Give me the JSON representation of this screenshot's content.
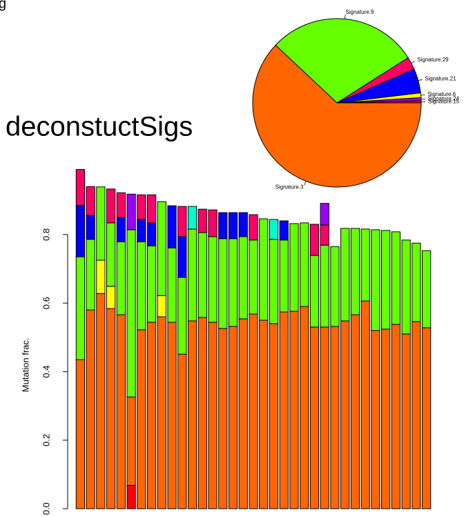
{
  "caption": "g",
  "title": "deconstuctSigs",
  "chart_data": [
    {
      "type": "pie",
      "categories": [
        "Signature.15",
        "Signature.24",
        "Signature.6",
        "Signature.21",
        "Signature.29",
        "Signature.9",
        "Signature.3"
      ],
      "values": [
        0.4,
        0.6,
        0.9,
        4.7,
        2.4,
        29,
        62
      ],
      "colors": [
        "#FF0000",
        "#9900FF",
        "#FFFF00",
        "#0000FF",
        "#FF0066",
        "#66FF00",
        "#FF6600"
      ]
    },
    {
      "type": "bar",
      "stacked": true,
      "ylabel": "Mutation frac.",
      "ylim": [
        0,
        1
      ],
      "yticks": [
        {
          "value": 0,
          "label": "0.0"
        },
        0.2,
        0.4,
        0.6,
        0.8
      ],
      "series": [
        {
          "color": "#FF0000",
          "values": [
            0,
            0,
            0,
            0,
            0,
            0.068,
            0,
            0,
            0,
            0,
            0,
            0,
            0,
            0,
            0,
            0,
            0,
            0,
            0,
            0,
            0,
            0,
            0,
            0,
            0,
            0,
            0,
            0,
            0,
            0,
            0,
            0,
            0,
            0,
            0
          ]
        },
        {
          "color": "#FF6600",
          "values": [
            0.435,
            0.58,
            0.628,
            0.584,
            0.566,
            0.258,
            0.522,
            0.544,
            0.56,
            0.544,
            0.451,
            0.548,
            0.558,
            0.544,
            0.526,
            0.532,
            0.554,
            0.568,
            0.55,
            0.54,
            0.574,
            0.576,
            0.59,
            0.53,
            0.53,
            0.532,
            0.548,
            0.566,
            0.606,
            0.52,
            0.524,
            0.538,
            0.51,
            0.546,
            0.528
          ]
        },
        {
          "color": "#FFFF00",
          "values": [
            0,
            0,
            0.097,
            0.065,
            0,
            0,
            0,
            0,
            0.062,
            0,
            0,
            0,
            0,
            0,
            0,
            0,
            0,
            0,
            0,
            0,
            0,
            0,
            0,
            0,
            0,
            0,
            0,
            0,
            0,
            0,
            0,
            0,
            0,
            0,
            0
          ]
        },
        {
          "color": "#66FF00",
          "values": [
            0.3,
            0.206,
            0.214,
            0.185,
            0.213,
            0.488,
            0.257,
            0.223,
            0.274,
            0.217,
            0.224,
            0.268,
            0.248,
            0.25,
            0.262,
            0.256,
            0.24,
            0.216,
            0.296,
            0.246,
            0.21,
            0.256,
            0.244,
            0.209,
            0.239,
            0.233,
            0.27,
            0.252,
            0.21,
            0.294,
            0.288,
            0.27,
            0.274,
            0.229,
            0.225
          ]
        },
        {
          "color": "#0000FF",
          "values": [
            0.15,
            0.07,
            0,
            0,
            0.071,
            0,
            0.065,
            0.067,
            0,
            0.123,
            0.119,
            0,
            0,
            0,
            0.076,
            0.076,
            0.07,
            0,
            0,
            0,
            0.056,
            0,
            0,
            0,
            0,
            0,
            0,
            0,
            0,
            0,
            0,
            0,
            0,
            0,
            0
          ]
        },
        {
          "color": "#00FFCC",
          "values": [
            0,
            0,
            0,
            0,
            0,
            0,
            0,
            0,
            0,
            0,
            0,
            0.066,
            0,
            0,
            0,
            0,
            0,
            0,
            0,
            0.058,
            0,
            0,
            0,
            0,
            0,
            0,
            0,
            0,
            0,
            0,
            0,
            0,
            0,
            0,
            0
          ]
        },
        {
          "color": "#FF0066",
          "values": [
            0.105,
            0.084,
            0,
            0.099,
            0.072,
            0,
            0.072,
            0.082,
            0,
            0,
            0.088,
            0,
            0.068,
            0.078,
            0,
            0,
            0,
            0.074,
            0,
            0,
            0,
            0,
            0,
            0.091,
            0.059,
            0,
            0,
            0,
            0,
            0,
            0,
            0,
            0,
            0,
            0
          ]
        },
        {
          "color": "#9900FF",
          "values": [
            0,
            0,
            0,
            0,
            0,
            0.104,
            0,
            0,
            0,
            0,
            0,
            0,
            0,
            0,
            0,
            0,
            0,
            0,
            0,
            0,
            0,
            0,
            0,
            0,
            0.063,
            0,
            0,
            0,
            0,
            0,
            0,
            0,
            0,
            0,
            0
          ]
        }
      ]
    }
  ]
}
